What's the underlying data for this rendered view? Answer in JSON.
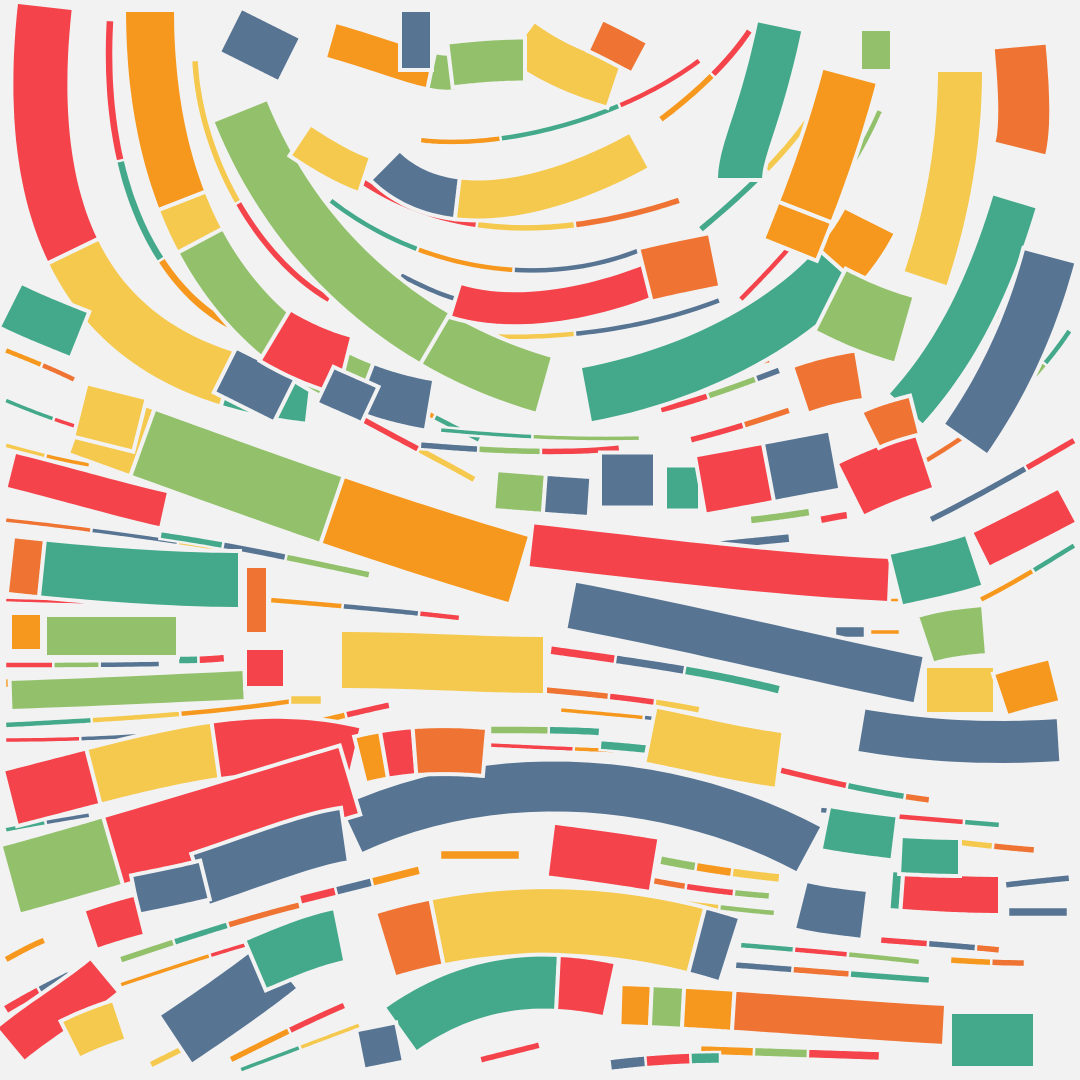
{
  "artwork": {
    "background": "#f2f2f2",
    "gap_color": "#f2f2f2",
    "palette": {
      "red": "#f4434a",
      "orange": "#ef7433",
      "amber": "#f6981e",
      "yellow": "#f5c84e",
      "lime": "#93c16b",
      "teal": "#43a98a",
      "slate": "#577493"
    },
    "swatches": [
      "red",
      "orange",
      "amber",
      "yellow",
      "lime",
      "teal",
      "slate"
    ]
  }
}
